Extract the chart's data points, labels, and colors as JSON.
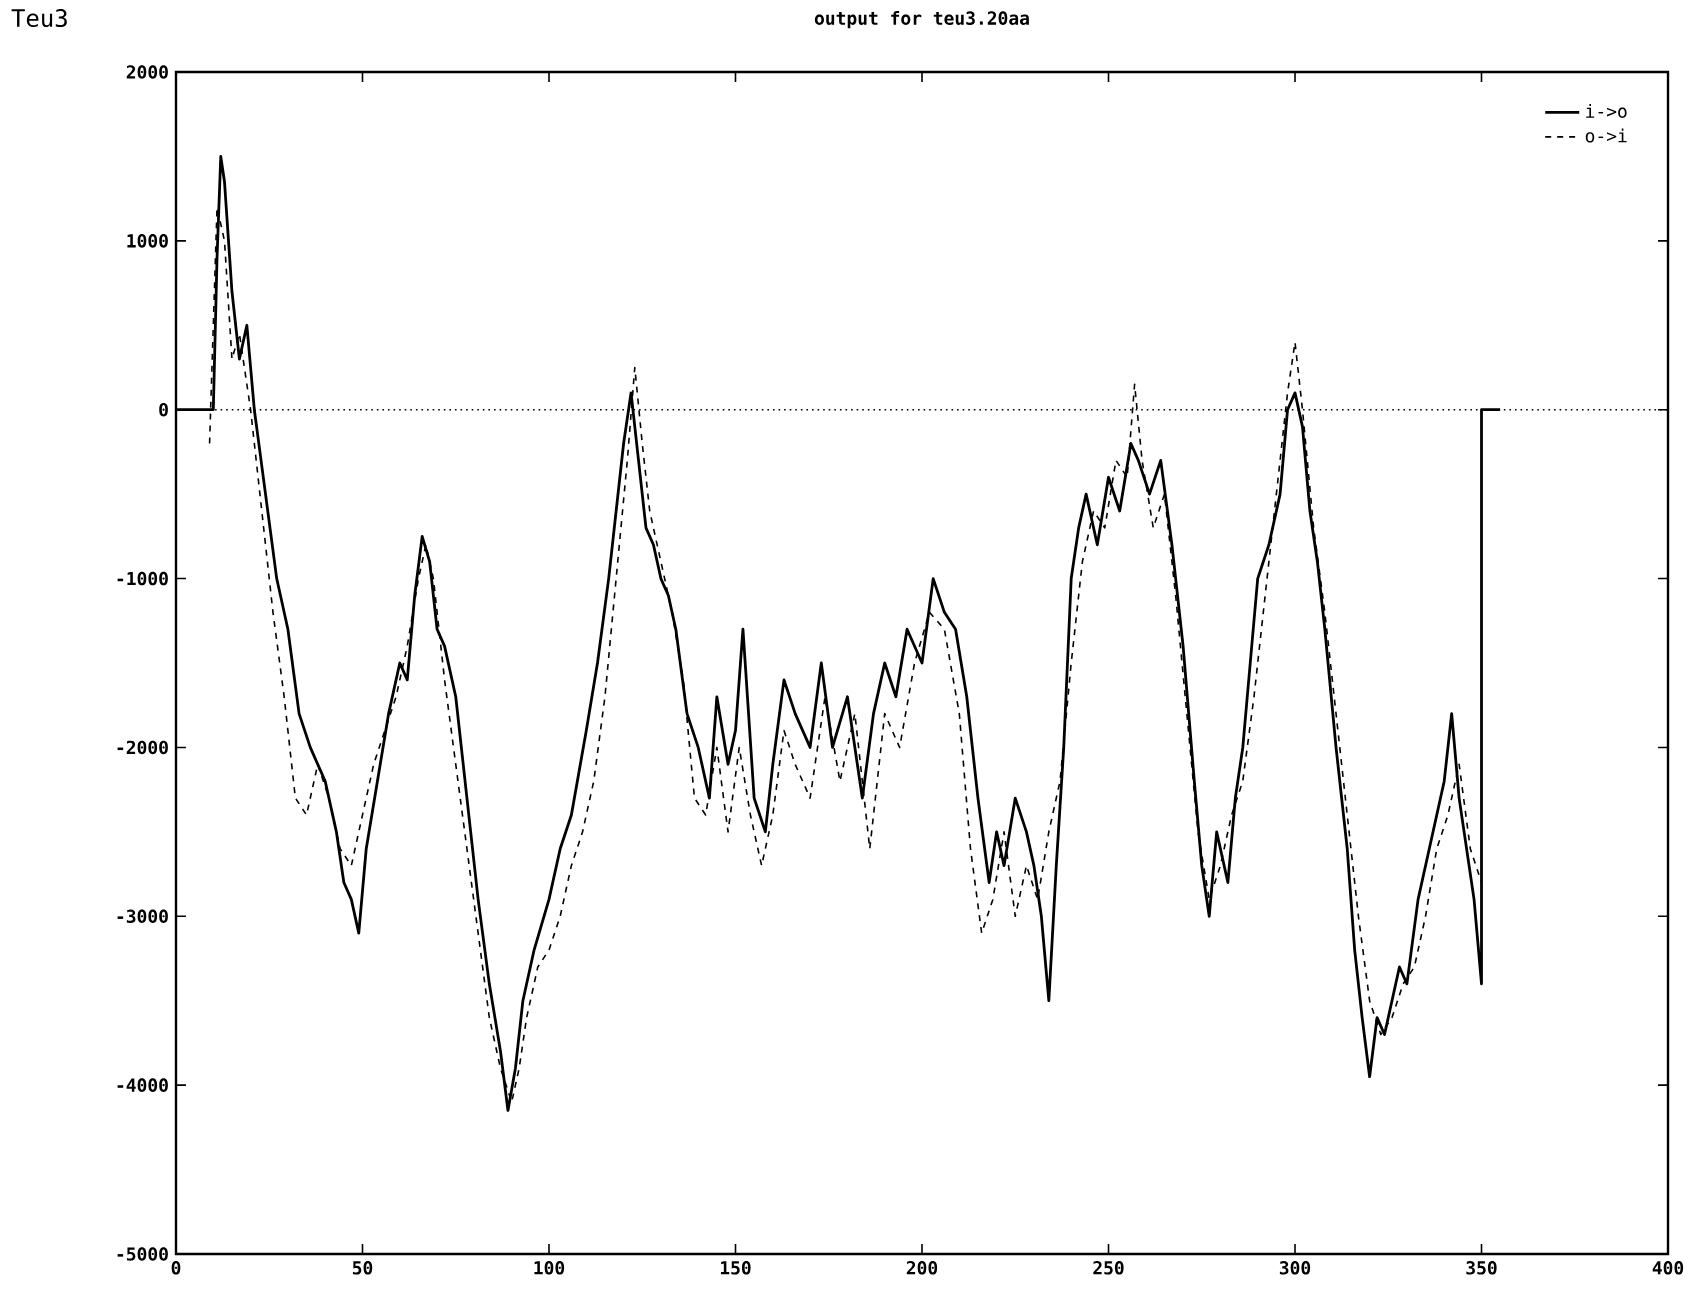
{
  "chart_data": {
    "type": "line",
    "title": "output for teu3.20aa",
    "annotations": [
      "Teu3"
    ],
    "xlim": [
      0,
      400
    ],
    "xticks": [
      0,
      50,
      100,
      150,
      200,
      250,
      300,
      350,
      400
    ],
    "ylim": [
      -5000,
      2000
    ],
    "yticks": [
      -5000,
      -4000,
      -3000,
      -2000,
      -1000,
      0,
      1000,
      2000
    ],
    "grid": false,
    "legend": "top right",
    "marker": "none",
    "ref_lines": [
      {
        "axis": "y",
        "value": 0,
        "line_style": "dotted",
        "color": "#000000"
      }
    ],
    "series": [
      {
        "name": "i->o",
        "color": "#000000",
        "line_style": "solid",
        "x": [
          0,
          10,
          11,
          12,
          13,
          15,
          17,
          19,
          21,
          24,
          27,
          30,
          33,
          36,
          40,
          43,
          45,
          47,
          49,
          51,
          54,
          57,
          60,
          62,
          64,
          66,
          68,
          70,
          72,
          75,
          78,
          81,
          84,
          87,
          89,
          91,
          93,
          96,
          100,
          103,
          106,
          110,
          113,
          116,
          118,
          120,
          122,
          124,
          126,
          128,
          130,
          132,
          134,
          137,
          140,
          143,
          145,
          148,
          150,
          152,
          155,
          158,
          160,
          163,
          166,
          170,
          173,
          176,
          180,
          184,
          187,
          190,
          193,
          196,
          200,
          203,
          206,
          209,
          212,
          215,
          218,
          220,
          222,
          225,
          228,
          230,
          232,
          234,
          236,
          238,
          240,
          242,
          244,
          247,
          250,
          253,
          256,
          258,
          261,
          264,
          267,
          270,
          273,
          275,
          277,
          279,
          282,
          284,
          286,
          288,
          290,
          293,
          296,
          298,
          300,
          302,
          304,
          306,
          308,
          311,
          314,
          316,
          318,
          320,
          322,
          324,
          326,
          328,
          330,
          333,
          336,
          338,
          340,
          342,
          344,
          346,
          348,
          350,
          350,
          355
        ],
        "values": [
          0,
          0,
          900,
          1500,
          1350,
          700,
          300,
          500,
          0,
          -500,
          -1000,
          -1300,
          -1800,
          -2000,
          -2200,
          -2500,
          -2800,
          -2900,
          -3100,
          -2600,
          -2200,
          -1800,
          -1500,
          -1600,
          -1100,
          -750,
          -900,
          -1300,
          -1400,
          -1700,
          -2300,
          -2900,
          -3400,
          -3800,
          -4150,
          -3900,
          -3500,
          -3200,
          -2900,
          -2600,
          -2400,
          -1900,
          -1500,
          -1000,
          -600,
          -200,
          100,
          -300,
          -700,
          -800,
          -1000,
          -1100,
          -1300,
          -1800,
          -2000,
          -2300,
          -1700,
          -2100,
          -1900,
          -1300,
          -2300,
          -2500,
          -2100,
          -1600,
          -1800,
          -2000,
          -1500,
          -2000,
          -1700,
          -2300,
          -1800,
          -1500,
          -1700,
          -1300,
          -1500,
          -1000,
          -1200,
          -1300,
          -1700,
          -2300,
          -2800,
          -2500,
          -2700,
          -2300,
          -2500,
          -2700,
          -3000,
          -3500,
          -2700,
          -2000,
          -1000,
          -700,
          -500,
          -800,
          -400,
          -600,
          -200,
          -300,
          -500,
          -300,
          -800,
          -1400,
          -2200,
          -2700,
          -3000,
          -2500,
          -2800,
          -2300,
          -2000,
          -1500,
          -1000,
          -800,
          -500,
          0,
          100,
          -100,
          -600,
          -900,
          -1300,
          -2000,
          -2600,
          -3200,
          -3600,
          -3950,
          -3600,
          -3700,
          -3500,
          -3300,
          -3400,
          -2900,
          -2600,
          -2400,
          -2200,
          -1800,
          -2300,
          -2600,
          -2900,
          -3400,
          0,
          0
        ]
      },
      {
        "name": "o->i",
        "color": "#000000",
        "line_style": "dashed",
        "x": [
          9,
          11,
          13,
          15,
          17,
          20,
          23,
          26,
          29,
          32,
          35,
          38,
          41,
          44,
          47,
          50,
          53,
          56,
          59,
          62,
          65,
          67,
          69,
          72,
          75,
          78,
          81,
          84,
          87,
          90,
          92,
          94,
          97,
          100,
          103,
          106,
          109,
          112,
          115,
          118,
          121,
          123,
          125,
          127,
          130,
          133,
          136,
          139,
          142,
          145,
          148,
          151,
          154,
          157,
          160,
          163,
          166,
          170,
          174,
          178,
          182,
          186,
          190,
          194,
          198,
          202,
          206,
          210,
          213,
          216,
          219,
          222,
          225,
          228,
          231,
          234,
          237,
          240,
          243,
          246,
          249,
          252,
          255,
          257,
          259,
          262,
          265,
          268,
          271,
          274,
          277,
          280,
          283,
          286,
          289,
          292,
          295,
          298,
          300,
          302,
          305,
          308,
          311,
          314,
          317,
          320,
          323,
          326,
          329,
          332,
          335,
          338,
          341,
          344,
          347,
          350
        ],
        "values": [
          -200,
          1200,
          1000,
          300,
          450,
          0,
          -600,
          -1200,
          -1700,
          -2300,
          -2400,
          -2100,
          -2300,
          -2600,
          -2700,
          -2400,
          -2100,
          -1900,
          -1700,
          -1400,
          -1000,
          -800,
          -1000,
          -1600,
          -2100,
          -2600,
          -3100,
          -3600,
          -3900,
          -4100,
          -3900,
          -3600,
          -3300,
          -3200,
          -3000,
          -2700,
          -2500,
          -2200,
          -1700,
          -1000,
          -300,
          250,
          -200,
          -600,
          -900,
          -1200,
          -1600,
          -2300,
          -2400,
          -2000,
          -2500,
          -2000,
          -2400,
          -2700,
          -2400,
          -1900,
          -2100,
          -2300,
          -1700,
          -2200,
          -1800,
          -2600,
          -1800,
          -2000,
          -1500,
          -1200,
          -1300,
          -1800,
          -2600,
          -3100,
          -2900,
          -2500,
          -3000,
          -2700,
          -2900,
          -2500,
          -2200,
          -1500,
          -900,
          -600,
          -700,
          -300,
          -400,
          150,
          -300,
          -700,
          -500,
          -1100,
          -1800,
          -2500,
          -2900,
          -2700,
          -2400,
          -2200,
          -1700,
          -1100,
          -500,
          100,
          400,
          0,
          -700,
          -1200,
          -1800,
          -2400,
          -3000,
          -3500,
          -3700,
          -3600,
          -3400,
          -3300,
          -3000,
          -2600,
          -2400,
          -2100,
          -2600,
          -2800
        ]
      }
    ]
  }
}
